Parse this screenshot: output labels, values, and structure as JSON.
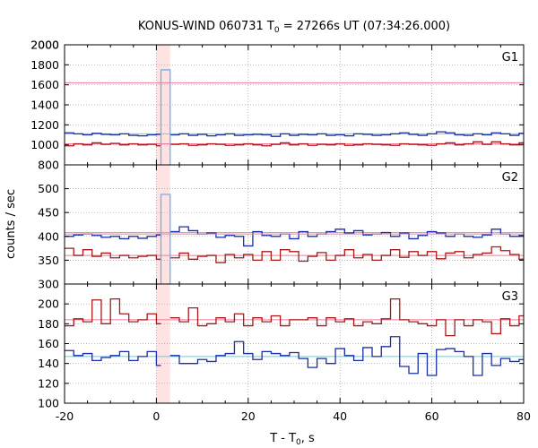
{
  "chart_data": {
    "type": "line",
    "title_main": "KONUS-WIND 060731 T",
    "title_sub": "0",
    "title_rest": " = 27266s UT (07:34:26.000)",
    "xlabel_main": "T - T",
    "xlabel_sub": "0",
    "xlabel_rest": ", s",
    "ylabel": "counts / sec",
    "xlim": [
      -20,
      80
    ],
    "x_ticks": [
      -20,
      0,
      20,
      40,
      60,
      80
    ],
    "highlight_interval": [
      0,
      3
    ],
    "bin_edges": [
      -20,
      -18,
      -16,
      -14,
      -12,
      -10,
      -8,
      -6,
      -4,
      -2,
      0,
      1,
      3,
      5,
      7,
      9,
      11,
      13,
      15,
      17,
      19,
      21,
      23,
      25,
      27,
      29,
      31,
      33,
      35,
      37,
      39,
      41,
      43,
      45,
      47,
      49,
      51,
      53,
      55,
      57,
      59,
      61,
      63,
      65,
      67,
      69,
      71,
      73,
      75,
      77,
      79,
      81
    ],
    "panels": [
      {
        "label": "G1",
        "ylim": [
          800,
          2000
        ],
        "y_ticks": [
          800,
          1000,
          1200,
          1400,
          1600,
          1800,
          2000
        ],
        "series": [
          {
            "color": "#1a2ea8",
            "background": 1110,
            "values": [
              1120,
              1110,
              1100,
              1115,
              1105,
              1100,
              1110,
              1095,
              1090,
              1100,
              1105,
              null,
              1100,
              1110,
              1095,
              1105,
              1090,
              1100,
              1110,
              1095,
              1100,
              1105,
              1100,
              1085,
              1110,
              1095,
              1105,
              1100,
              1110,
              1095,
              1100,
              1090,
              1110,
              1105,
              1095,
              1100,
              1110,
              1120,
              1105,
              1095,
              1110,
              1130,
              1120,
              1100,
              1095,
              1110,
              1100,
              1120,
              1110,
              1095,
              1115
            ]
          },
          {
            "color": "#a81a1a",
            "background": 1010,
            "values": [
              990,
              1010,
              1000,
              1020,
              1005,
              1015,
              1000,
              1010,
              1000,
              1005,
              990,
              null,
              1005,
              1010,
              995,
              1000,
              1010,
              1005,
              995,
              1000,
              1010,
              1000,
              990,
              1005,
              1020,
              1000,
              1010,
              995,
              1005,
              1000,
              1010,
              995,
              1000,
              1010,
              1005,
              1000,
              995,
              1010,
              1005,
              1000,
              995,
              1010,
              1020,
              1000,
              1010,
              1030,
              1005,
              1030,
              1010,
              1000,
              1020
            ]
          },
          {
            "color": "#6ab0f0",
            "background": 1620,
            "values": [
              null,
              null,
              null,
              null,
              null,
              null,
              null,
              null,
              null,
              null,
              null,
              1750,
              null,
              null,
              null,
              null,
              null,
              null,
              null,
              null,
              null,
              null,
              null,
              null,
              null,
              null,
              null,
              null,
              null,
              null,
              null,
              null,
              null,
              null,
              null,
              null,
              null,
              null,
              null,
              null,
              null,
              null,
              null,
              null,
              null,
              null,
              null,
              null,
              null,
              null,
              null
            ]
          }
        ]
      },
      {
        "label": "G2",
        "ylim": [
          300,
          550
        ],
        "y_ticks": [
          300,
          350,
          400,
          450,
          500
        ],
        "series": [
          {
            "color": "#1a2ea8",
            "background": 408,
            "values": [
              400,
              403,
              405,
              402,
              398,
              400,
              395,
              400,
              396,
              400,
              403,
              null,
              410,
              420,
              412,
              405,
              407,
              398,
              402,
              400,
              380,
              410,
              402,
              400,
              405,
              395,
              410,
              400,
              405,
              410,
              415,
              407,
              412,
              403,
              405,
              408,
              400,
              407,
              395,
              402,
              410,
              407,
              400,
              405,
              400,
              398,
              403,
              415,
              405,
              400,
              402
            ]
          },
          {
            "color": "#a81a1a",
            "background": 360,
            "values": [
              375,
              360,
              372,
              358,
              365,
              355,
              360,
              355,
              358,
              360,
              352,
              null,
              355,
              365,
              352,
              358,
              360,
              345,
              362,
              355,
              362,
              350,
              368,
              350,
              372,
              368,
              348,
              358,
              366,
              350,
              360,
              372,
              355,
              362,
              350,
              360,
              372,
              356,
              368,
              360,
              368,
              353,
              365,
              368,
              355,
              362,
              365,
              378,
              370,
              362,
              352
            ]
          },
          {
            "color": "#6ab0f0",
            "background": 405,
            "values": [
              null,
              null,
              null,
              null,
              null,
              null,
              null,
              null,
              null,
              null,
              null,
              488,
              null,
              null,
              null,
              null,
              null,
              null,
              null,
              null,
              null,
              null,
              null,
              null,
              null,
              null,
              null,
              null,
              null,
              null,
              null,
              null,
              null,
              null,
              null,
              null,
              null,
              null,
              null,
              null,
              null,
              null,
              null,
              null,
              null,
              null,
              null,
              null,
              null,
              null,
              null
            ]
          }
        ]
      },
      {
        "label": "G3",
        "ylim": [
          100,
          220
        ],
        "y_ticks": [
          100,
          120,
          140,
          160,
          180,
          200
        ],
        "series": [
          {
            "color": "#1a2ea8",
            "background": 147,
            "values": [
              153,
              148,
              150,
              143,
              146,
              148,
              152,
              143,
              147,
              152,
              138,
              null,
              148,
              140,
              140,
              144,
              142,
              148,
              150,
              162,
              150,
              144,
              152,
              150,
              148,
              151,
              145,
              136,
              145,
              140,
              155,
              148,
              143,
              156,
              147,
              157,
              167,
              137,
              130,
              150,
              128,
              154,
              155,
              152,
              147,
              128,
              150,
              138,
              145,
              142,
              144
            ]
          },
          {
            "color": "#a81a1a",
            "background": 184,
            "values": [
              178,
              185,
              182,
              204,
              180,
              205,
              190,
              182,
              184,
              190,
              180,
              null,
              186,
              182,
              196,
              178,
              180,
              186,
              182,
              190,
              178,
              186,
              182,
              188,
              178,
              184,
              184,
              186,
              178,
              186,
              182,
              185,
              178,
              182,
              180,
              185,
              205,
              184,
              182,
              180,
              178,
              184,
              168,
              184,
              178,
              184,
              182,
              170,
              185,
              178,
              188
            ]
          }
        ]
      }
    ]
  }
}
